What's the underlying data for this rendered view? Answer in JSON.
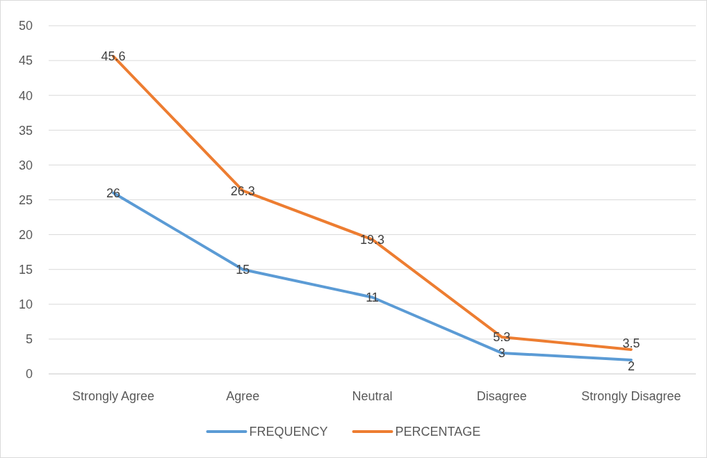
{
  "chart_data": {
    "type": "line",
    "categories": [
      "Strongly Agree",
      "Agree",
      "Neutral",
      "Disagree",
      "Strongly Disagree"
    ],
    "series": [
      {
        "name": "FREQUENCY",
        "color": "#5b9bd5",
        "values": [
          26,
          15,
          11,
          3,
          2
        ]
      },
      {
        "name": "PERCENTAGE",
        "color": "#ed7d31",
        "values": [
          45.6,
          26.3,
          19.3,
          5.3,
          3.5
        ]
      }
    ],
    "ylim": [
      0,
      50
    ],
    "yticks": [
      0,
      5,
      10,
      15,
      20,
      25,
      30,
      35,
      40,
      45,
      50
    ],
    "grid": "y",
    "legend": "bottom",
    "data_labels": true,
    "marker": "none",
    "line_style": "solid"
  }
}
